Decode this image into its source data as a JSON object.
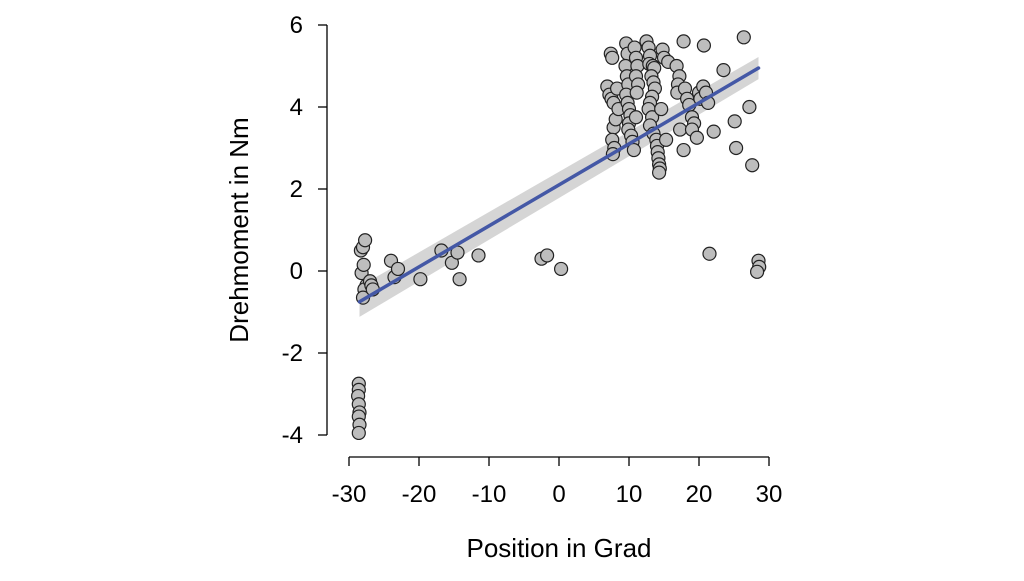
{
  "chart_data": {
    "type": "scatter",
    "xlabel": "Position in Grad",
    "ylabel": "Drehmoment in Nm",
    "xlim": [
      -30,
      30
    ],
    "ylim": [
      -4,
      6
    ],
    "x_ticks": [
      -30,
      -20,
      -10,
      0,
      10,
      20,
      30
    ],
    "y_ticks": [
      -4,
      -2,
      0,
      2,
      4,
      6
    ],
    "x_tick_labels": [
      "-30",
      "-20",
      "-10",
      "0",
      "10",
      "20",
      "30"
    ],
    "y_tick_labels": [
      "-4",
      "-2",
      "0",
      "2",
      "4",
      "6"
    ],
    "grid": false,
    "colors": {
      "point_fill": "#bdbdbd",
      "point_stroke": "#222222",
      "fit_line": "#4458a6",
      "confidence_band": "#d5d5d5"
    },
    "series": [
      {
        "type": "scatter",
        "points": [
          [
            -28.6,
            -2.75
          ],
          [
            -28.6,
            -2.9
          ],
          [
            -28.7,
            -3.05
          ],
          [
            -28.6,
            -3.25
          ],
          [
            -28.5,
            -3.45
          ],
          [
            -28.6,
            -3.55
          ],
          [
            -28.5,
            -3.75
          ],
          [
            -28.6,
            -3.95
          ],
          [
            -28.3,
            0.5
          ],
          [
            -28.0,
            0.58
          ],
          [
            -27.7,
            0.75
          ],
          [
            -28.2,
            -0.05
          ],
          [
            -27.9,
            0.15
          ],
          [
            -27.5,
            -0.35
          ],
          [
            -27.8,
            -0.45
          ],
          [
            -28.0,
            -0.65
          ],
          [
            -27.0,
            -0.25
          ],
          [
            -26.8,
            -0.35
          ],
          [
            -26.6,
            -0.45
          ],
          [
            -24.0,
            0.25
          ],
          [
            -23.5,
            -0.15
          ],
          [
            -23.0,
            0.05
          ],
          [
            -19.8,
            -0.2
          ],
          [
            -16.8,
            0.5
          ],
          [
            -15.3,
            0.2
          ],
          [
            -14.5,
            0.45
          ],
          [
            -14.2,
            -0.2
          ],
          [
            -11.5,
            0.38
          ],
          [
            -2.5,
            0.3
          ],
          [
            -1.7,
            0.38
          ],
          [
            0.3,
            0.05
          ],
          [
            6.9,
            4.5
          ],
          [
            7.2,
            4.3
          ],
          [
            7.5,
            4.2
          ],
          [
            7.8,
            4.1
          ],
          [
            7.4,
            5.3
          ],
          [
            7.6,
            5.2
          ],
          [
            7.8,
            3.5
          ],
          [
            7.6,
            3.2
          ],
          [
            7.9,
            3.0
          ],
          [
            7.7,
            2.85
          ],
          [
            8.3,
            4.45
          ],
          [
            8.1,
            3.7
          ],
          [
            8.5,
            3.95
          ],
          [
            9.6,
            5.55
          ],
          [
            9.8,
            5.3
          ],
          [
            9.5,
            5.0
          ],
          [
            9.7,
            4.75
          ],
          [
            9.9,
            4.55
          ],
          [
            9.6,
            4.3
          ],
          [
            9.8,
            4.1
          ],
          [
            10.0,
            3.95
          ],
          [
            10.2,
            3.8
          ],
          [
            10.0,
            3.6
          ],
          [
            9.9,
            3.45
          ],
          [
            10.3,
            3.3
          ],
          [
            10.5,
            3.15
          ],
          [
            10.7,
            2.95
          ],
          [
            10.8,
            5.45
          ],
          [
            11.0,
            5.2
          ],
          [
            11.2,
            5.0
          ],
          [
            11.0,
            4.75
          ],
          [
            11.3,
            4.55
          ],
          [
            11.1,
            4.35
          ],
          [
            11.0,
            3.75
          ],
          [
            12.5,
            5.6
          ],
          [
            12.8,
            5.45
          ],
          [
            13.0,
            5.25
          ],
          [
            12.9,
            5.05
          ],
          [
            13.4,
            5.0
          ],
          [
            13.6,
            4.95
          ],
          [
            13.2,
            4.75
          ],
          [
            13.5,
            4.6
          ],
          [
            13.7,
            4.45
          ],
          [
            13.3,
            4.25
          ],
          [
            13.0,
            4.1
          ],
          [
            12.8,
            3.95
          ],
          [
            13.3,
            3.75
          ],
          [
            13.0,
            3.55
          ],
          [
            13.5,
            3.35
          ],
          [
            13.9,
            3.2
          ],
          [
            14.0,
            3.05
          ],
          [
            14.1,
            2.9
          ],
          [
            14.2,
            2.75
          ],
          [
            14.3,
            2.6
          ],
          [
            14.4,
            2.5
          ],
          [
            14.3,
            2.4
          ],
          [
            14.6,
            3.95
          ],
          [
            15.3,
            3.2
          ],
          [
            14.8,
            5.4
          ],
          [
            15.0,
            5.2
          ],
          [
            15.6,
            5.1
          ],
          [
            16.8,
            5.0
          ],
          [
            17.2,
            4.75
          ],
          [
            17.0,
            4.55
          ],
          [
            16.9,
            4.35
          ],
          [
            17.8,
            5.6
          ],
          [
            17.3,
            3.45
          ],
          [
            17.8,
            2.95
          ],
          [
            18.0,
            4.45
          ],
          [
            18.3,
            4.2
          ],
          [
            18.6,
            4.05
          ],
          [
            19.0,
            3.75
          ],
          [
            19.3,
            3.6
          ],
          [
            19.0,
            3.45
          ],
          [
            19.7,
            3.25
          ],
          [
            20.0,
            4.35
          ],
          [
            20.6,
            4.5
          ],
          [
            20.2,
            4.2
          ],
          [
            20.7,
            5.5
          ],
          [
            21.0,
            4.35
          ],
          [
            21.3,
            4.1
          ],
          [
            21.5,
            0.42
          ],
          [
            22.1,
            3.4
          ],
          [
            23.5,
            4.9
          ],
          [
            25.1,
            3.65
          ],
          [
            25.3,
            3.0
          ],
          [
            26.4,
            5.7
          ],
          [
            27.2,
            4.0
          ],
          [
            27.6,
            2.58
          ],
          [
            28.5,
            0.25
          ],
          [
            28.6,
            0.1
          ],
          [
            28.3,
            -0.02
          ]
        ]
      },
      {
        "type": "line",
        "name": "",
        "x": [
          -28.5,
          28.5
        ],
        "y": [
          -0.75,
          4.95
        ]
      }
    ],
    "confidence_band": {
      "x": [
        -28.5,
        28.5
      ],
      "lower": [
        -1.12,
        4.68
      ],
      "upper": [
        -0.38,
        5.22
      ]
    }
  }
}
